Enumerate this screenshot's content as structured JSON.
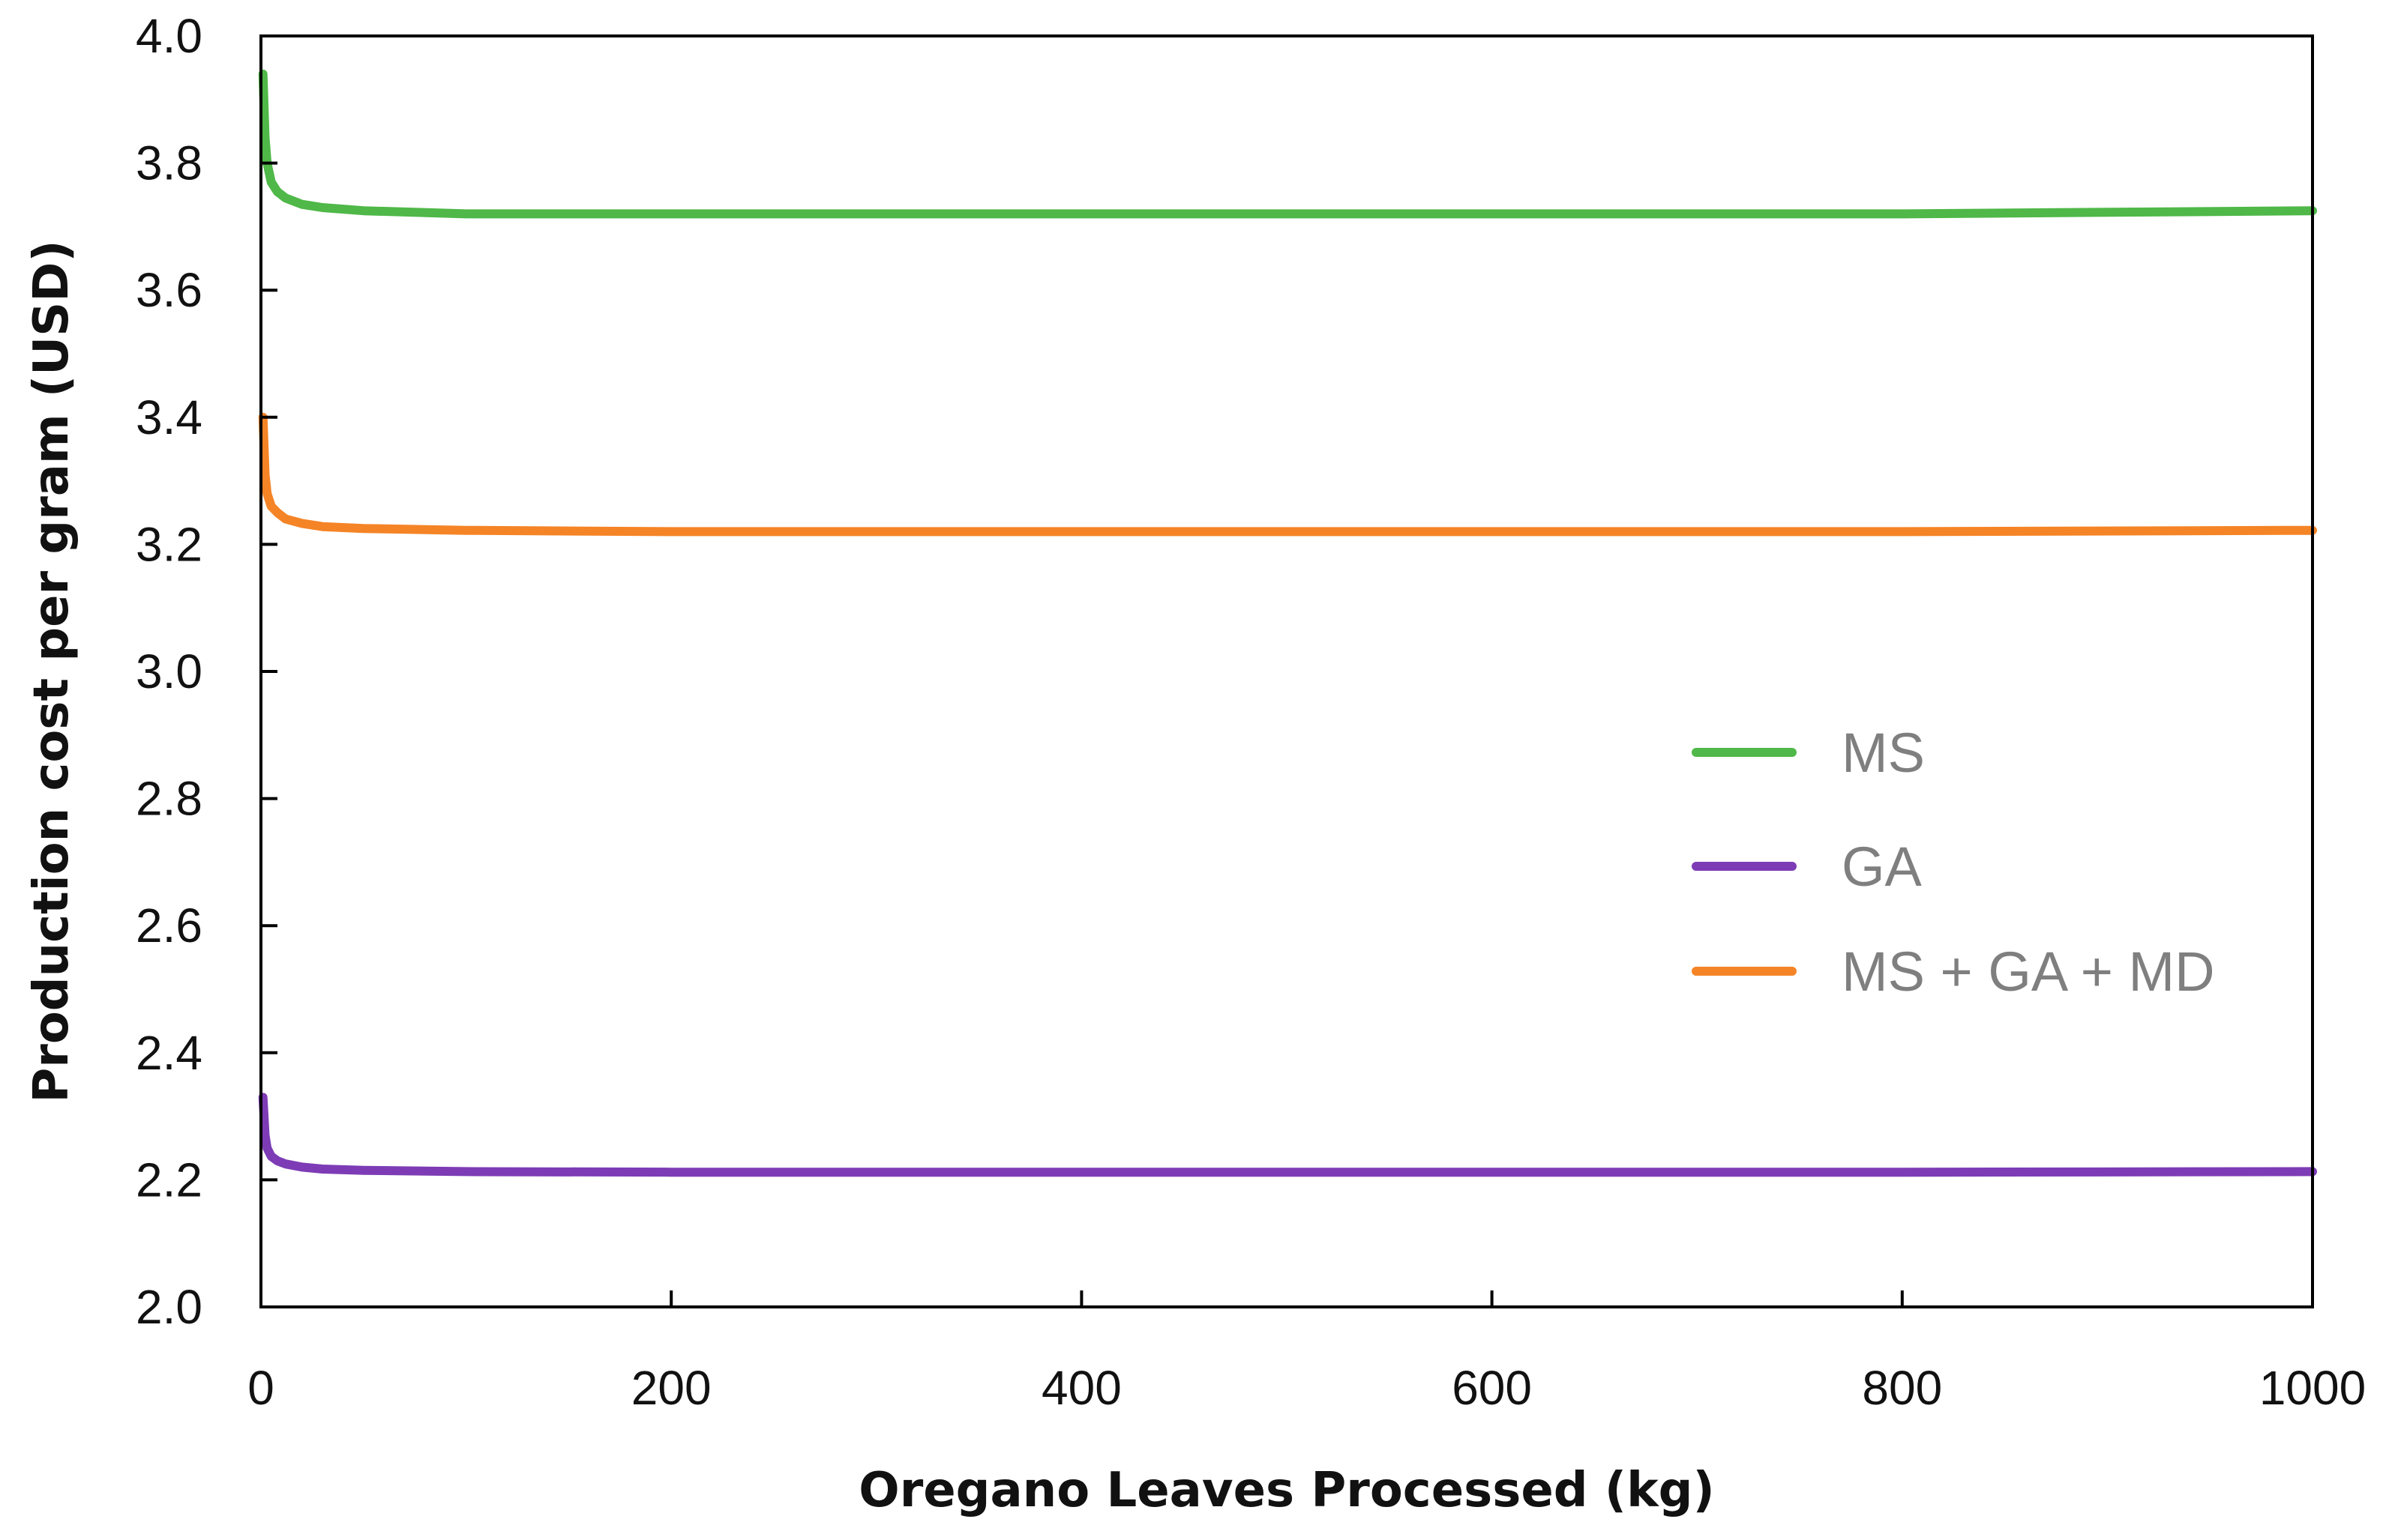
{
  "chart_data": {
    "type": "line",
    "title": "",
    "xlabel": "Oregano Leaves Processed (kg)",
    "ylabel": "Production cost per gram (USD)",
    "xlim": [
      0,
      1000
    ],
    "ylim": [
      2.0,
      4.0
    ],
    "xticks": [
      0,
      200,
      400,
      600,
      800,
      1000
    ],
    "yticks": [
      2.0,
      2.2,
      2.4,
      2.6,
      2.8,
      3.0,
      3.2,
      3.4,
      3.6,
      3.8,
      4.0
    ],
    "x_tick_labels": [
      "0",
      "200",
      "400",
      "600",
      "800",
      "1000"
    ],
    "y_tick_labels": [
      "2.0",
      "2.2",
      "2.4",
      "2.6",
      "2.8",
      "3.0",
      "3.2",
      "3.4",
      "3.6",
      "3.8",
      "4.0"
    ],
    "grid": false,
    "legend_position": "right",
    "series": [
      {
        "name": "MS",
        "color": "#4fb848",
        "x": [
          1,
          2,
          3,
          5,
          8,
          12,
          20,
          30,
          50,
          100,
          200,
          400,
          600,
          800,
          1000
        ],
        "y": [
          3.94,
          3.84,
          3.8,
          3.77,
          3.755,
          3.745,
          3.735,
          3.73,
          3.725,
          3.72,
          3.72,
          3.72,
          3.72,
          3.72,
          3.725
        ]
      },
      {
        "name": "GA",
        "color": "#7d3cb5",
        "x": [
          1,
          2,
          3,
          5,
          8,
          12,
          20,
          30,
          50,
          100,
          200,
          400,
          600,
          800,
          1000
        ],
        "y": [
          2.33,
          2.27,
          2.25,
          2.237,
          2.23,
          2.225,
          2.22,
          2.217,
          2.215,
          2.213,
          2.212,
          2.212,
          2.212,
          2.212,
          2.213
        ]
      },
      {
        "name": "MS + GA + MD",
        "color": "#f58426",
        "x": [
          1,
          2,
          3,
          5,
          8,
          12,
          20,
          30,
          50,
          100,
          200,
          400,
          600,
          800,
          1000
        ],
        "y": [
          3.4,
          3.31,
          3.28,
          3.26,
          3.25,
          3.24,
          3.233,
          3.228,
          3.225,
          3.222,
          3.22,
          3.22,
          3.22,
          3.22,
          3.222
        ]
      }
    ]
  }
}
